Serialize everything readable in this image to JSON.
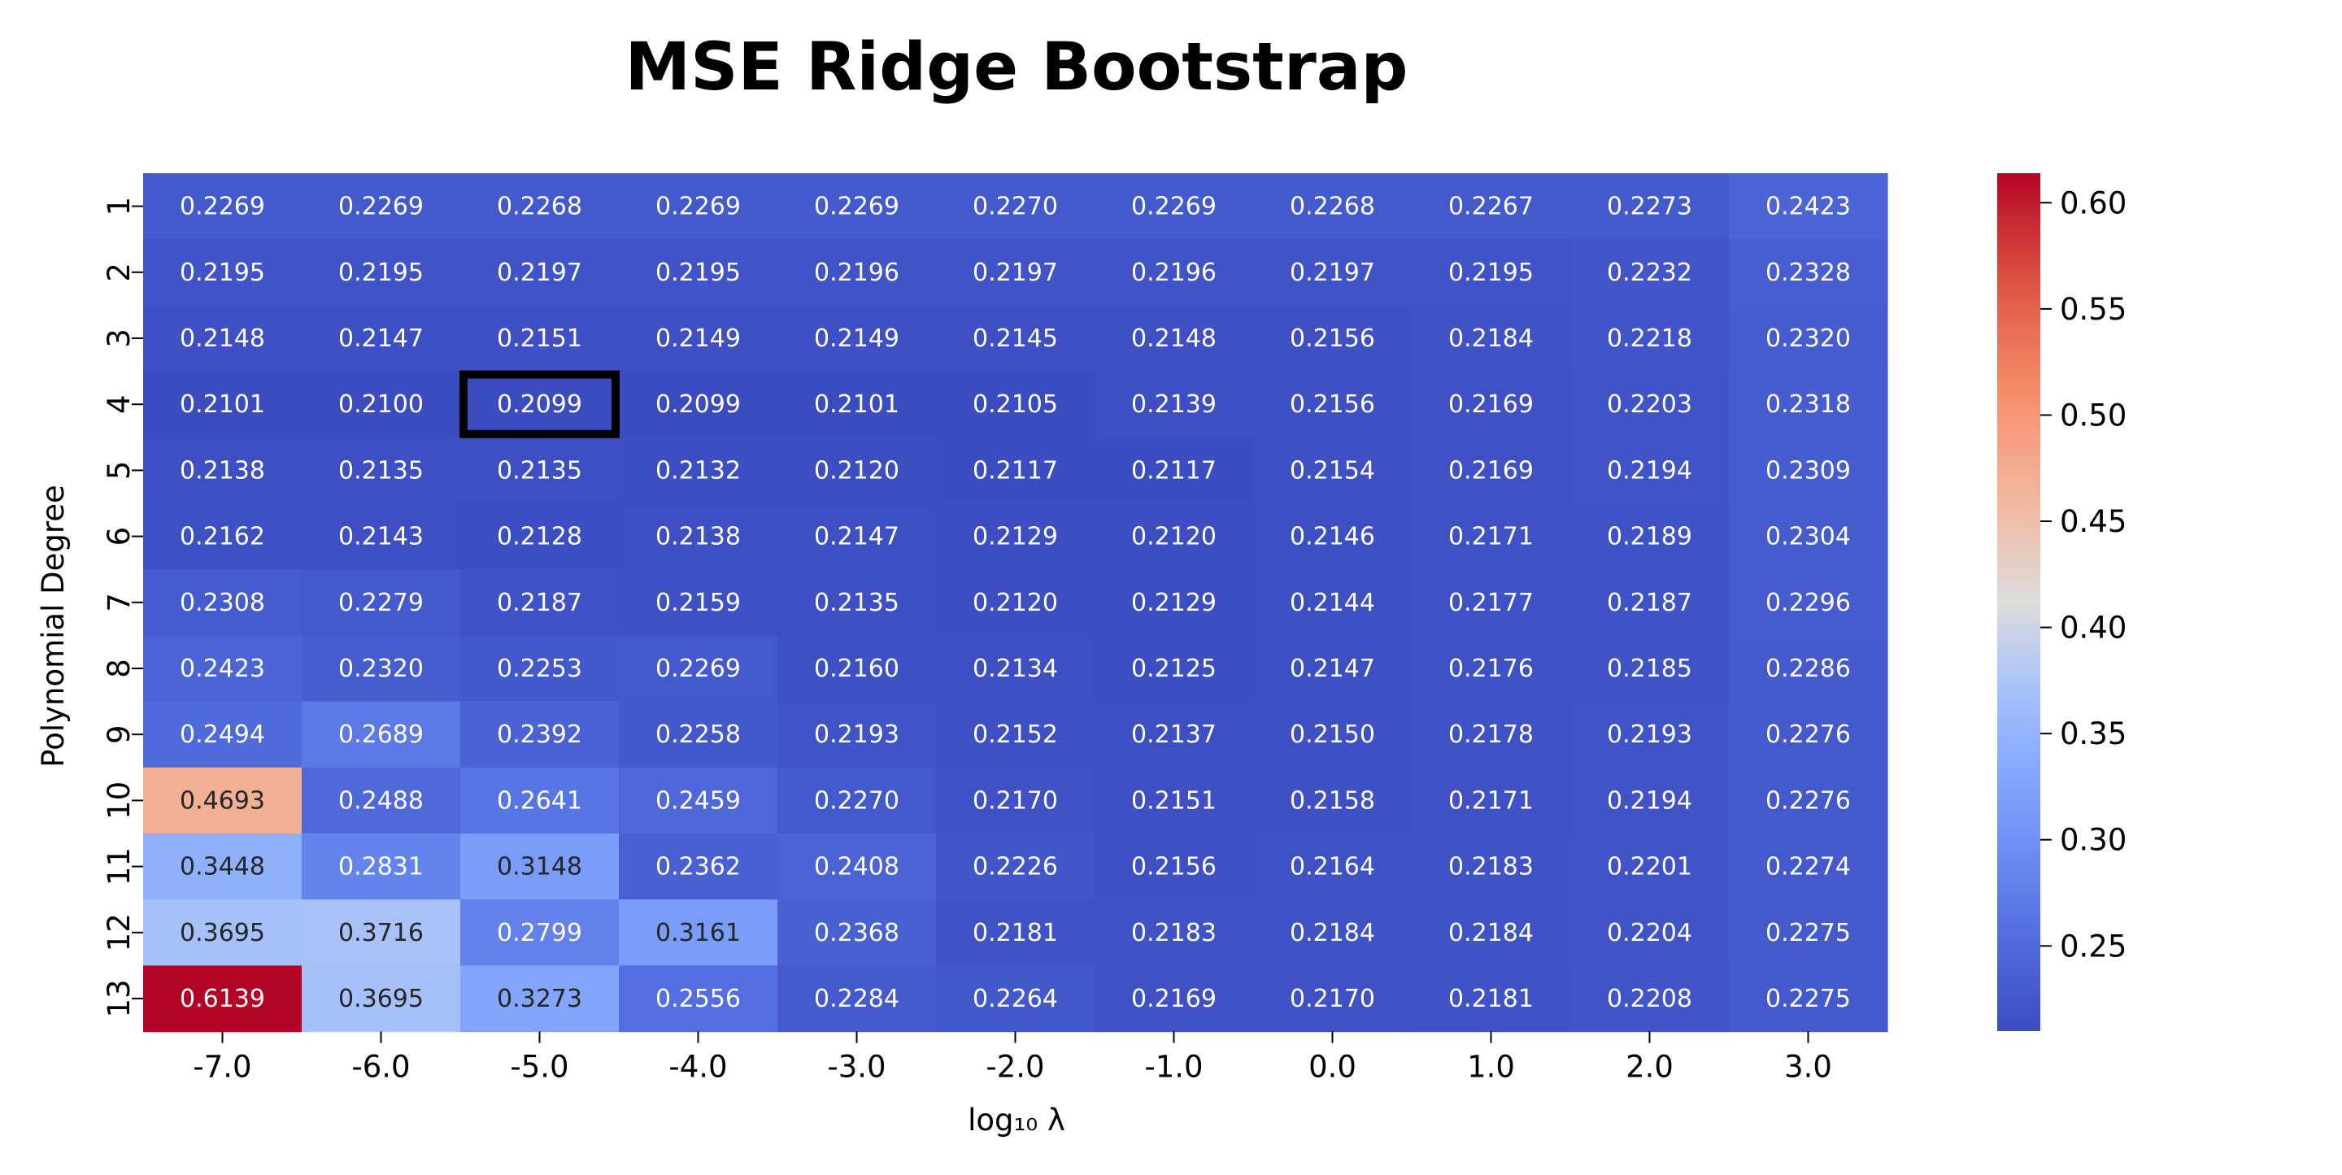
{
  "chart_data": {
    "type": "heatmap",
    "title": "MSE Ridge Bootstrap",
    "xlabel": "log₁₀ λ",
    "ylabel": "Polynomial Degree",
    "x_categories": [
      "-7.0",
      "-6.0",
      "-5.0",
      "-4.0",
      "-3.0",
      "-2.0",
      "-1.0",
      "0.0",
      "1.0",
      "2.0",
      "3.0"
    ],
    "y_categories": [
      "1",
      "2",
      "3",
      "4",
      "5",
      "6",
      "7",
      "8",
      "9",
      "10",
      "11",
      "12",
      "13"
    ],
    "values": [
      [
        0.2269,
        0.2269,
        0.2268,
        0.2269,
        0.2269,
        0.227,
        0.2269,
        0.2268,
        0.2267,
        0.2273,
        0.2423
      ],
      [
        0.2195,
        0.2195,
        0.2197,
        0.2195,
        0.2196,
        0.2197,
        0.2196,
        0.2197,
        0.2195,
        0.2232,
        0.2328
      ],
      [
        0.2148,
        0.2147,
        0.2151,
        0.2149,
        0.2149,
        0.2145,
        0.2148,
        0.2156,
        0.2184,
        0.2218,
        0.232
      ],
      [
        0.2101,
        0.21,
        0.2099,
        0.2099,
        0.2101,
        0.2105,
        0.2139,
        0.2156,
        0.2169,
        0.2203,
        0.2318
      ],
      [
        0.2138,
        0.2135,
        0.2135,
        0.2132,
        0.212,
        0.2117,
        0.2117,
        0.2154,
        0.2169,
        0.2194,
        0.2309
      ],
      [
        0.2162,
        0.2143,
        0.2128,
        0.2138,
        0.2147,
        0.2129,
        0.212,
        0.2146,
        0.2171,
        0.2189,
        0.2304
      ],
      [
        0.2308,
        0.2279,
        0.2187,
        0.2159,
        0.2135,
        0.212,
        0.2129,
        0.2144,
        0.2177,
        0.2187,
        0.2296
      ],
      [
        0.2423,
        0.232,
        0.2253,
        0.2269,
        0.216,
        0.2134,
        0.2125,
        0.2147,
        0.2176,
        0.2185,
        0.2286
      ],
      [
        0.2494,
        0.2689,
        0.2392,
        0.2258,
        0.2193,
        0.2152,
        0.2137,
        0.215,
        0.2178,
        0.2193,
        0.2276
      ],
      [
        0.4693,
        0.2488,
        0.2641,
        0.2459,
        0.227,
        0.217,
        0.2151,
        0.2158,
        0.2171,
        0.2194,
        0.2276
      ],
      [
        0.3448,
        0.2831,
        0.3148,
        0.2362,
        0.2408,
        0.2226,
        0.2156,
        0.2164,
        0.2183,
        0.2201,
        0.2274
      ],
      [
        0.3695,
        0.3716,
        0.2799,
        0.3161,
        0.2368,
        0.2181,
        0.2183,
        0.2184,
        0.2184,
        0.2204,
        0.2275
      ],
      [
        0.6139,
        0.3695,
        0.3273,
        0.2556,
        0.2284,
        0.2264,
        0.2169,
        0.217,
        0.2181,
        0.2208,
        0.2275
      ]
    ],
    "value_format_decimals": 4,
    "colormap": "coolwarm",
    "color_range": [
      0.2099,
      0.6139
    ],
    "colorbar_ticks": [
      "0.25",
      "0.30",
      "0.35",
      "0.40",
      "0.45",
      "0.50",
      "0.55",
      "0.60"
    ],
    "highlighted_cell": {
      "x": "-5.0",
      "y": "4"
    },
    "highlight_color": "#000000"
  }
}
